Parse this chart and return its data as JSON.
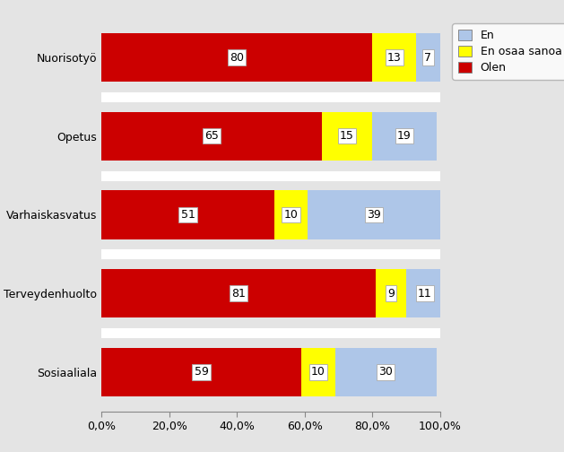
{
  "categories": [
    "Sosiaaliala",
    "Terveydenhuolto",
    "Varhaiskasvatus",
    "Opetus",
    "Nuorisotyö"
  ],
  "olen": [
    59,
    81,
    51,
    65,
    80
  ],
  "en_osaa_sanoa": [
    10,
    9,
    10,
    15,
    13
  ],
  "en": [
    30,
    11,
    39,
    19,
    7
  ],
  "color_olen": "#cc0000",
  "color_en_osaa_sanoa": "#ffff00",
  "color_en": "#aec6e8",
  "bg_color": "#e4e4e4",
  "plot_bg_color": "#e4e4e4",
  "xlim": [
    0,
    100
  ],
  "xtick_labels": [
    "0,0%",
    "20,0%",
    "40,0%",
    "60,0%",
    "80,0%",
    "100,0%"
  ],
  "xtick_values": [
    0,
    20,
    40,
    60,
    80,
    100
  ],
  "fontsize": 9,
  "label_fontsize": 9,
  "bar_height": 0.62
}
